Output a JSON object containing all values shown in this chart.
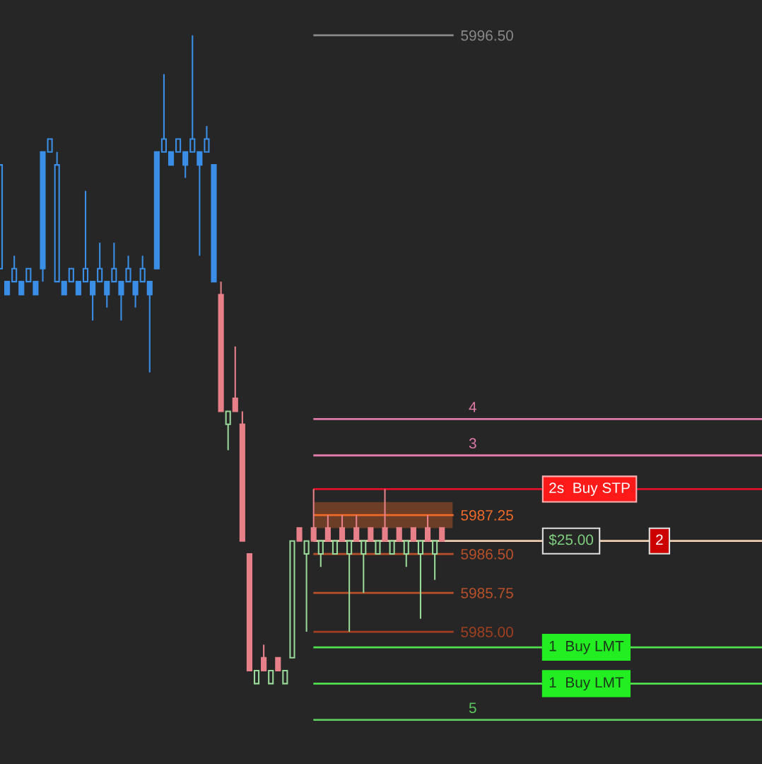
{
  "chart_data": {
    "type": "candlestick",
    "categories": [
      null,
      null,
      null,
      null,
      null,
      null,
      null,
      null,
      null,
      null,
      null,
      null,
      null,
      null,
      null,
      null,
      null,
      null,
      null,
      null,
      null,
      null,
      null,
      null,
      null,
      null,
      null,
      null,
      null,
      null,
      null,
      null,
      null,
      null,
      null,
      null,
      null,
      null,
      null,
      null,
      null,
      null,
      null,
      null,
      null,
      null,
      null,
      null,
      null,
      null,
      null,
      null,
      null,
      null,
      null,
      null,
      null,
      null,
      null,
      null,
      null,
      null,
      null
    ],
    "ohlc": [
      [
        5992.0,
        5994.0,
        5992.0,
        5994.0
      ],
      [
        5991.75,
        5991.75,
        5991.5,
        5991.5
      ],
      [
        5991.75,
        5992.25,
        5991.75,
        5992.0
      ],
      [
        5991.75,
        5991.75,
        5991.5,
        5991.5
      ],
      [
        5991.75,
        5992.0,
        5991.75,
        5992.0
      ],
      [
        5991.75,
        5991.75,
        5991.5,
        5991.5
      ],
      [
        5994.25,
        5994.25,
        5991.75,
        5992.0
      ],
      [
        5994.25,
        5994.5,
        5994.25,
        5994.5
      ],
      [
        5991.75,
        5994.25,
        5991.75,
        5994.0
      ],
      [
        5991.75,
        5991.75,
        5991.5,
        5991.5
      ],
      [
        5991.75,
        5992.0,
        5991.75,
        5992.0
      ],
      [
        5991.75,
        5991.75,
        5991.5,
        5991.5
      ],
      [
        5991.75,
        5993.5,
        5991.75,
        5992.0
      ],
      [
        5991.75,
        5991.75,
        5991.0,
        5991.5
      ],
      [
        5991.75,
        5992.5,
        5991.75,
        5992.0
      ],
      [
        5991.75,
        5991.75,
        5991.25,
        5991.5
      ],
      [
        5991.75,
        5992.5,
        5991.75,
        5992.0
      ],
      [
        5991.75,
        5991.75,
        5991.0,
        5991.5
      ],
      [
        5991.75,
        5992.25,
        5991.75,
        5992.0
      ],
      [
        5991.75,
        5991.75,
        5991.25,
        5991.5
      ],
      [
        5991.75,
        5992.25,
        5991.75,
        5992.0
      ],
      [
        5991.75,
        5991.75,
        5990.0,
        5991.5
      ],
      [
        5994.25,
        5994.25,
        5992.0,
        5992.0
      ],
      [
        5994.25,
        5995.75,
        5994.25,
        5994.5
      ],
      [
        5994.25,
        5994.25,
        5994.0,
        5994.0
      ],
      [
        5994.25,
        5994.5,
        5994.25,
        5994.5
      ],
      [
        5994.25,
        5994.25,
        5993.75,
        5994.0
      ],
      [
        5994.25,
        5996.5,
        5994.25,
        5994.5
      ],
      [
        5994.25,
        5994.25,
        5992.25,
        5994.0
      ],
      [
        5994.25,
        5994.75,
        5994.25,
        5994.5
      ],
      [
        5994.0,
        5994.0,
        5991.75,
        5991.75
      ],
      [
        5991.5,
        5991.75,
        5989.25,
        5989.25
      ],
      [
        5989.0,
        5989.25,
        5988.5,
        5989.25
      ],
      [
        5989.5,
        5990.5,
        5989.25,
        5989.25
      ],
      [
        5989.0,
        5989.25,
        5986.75,
        5986.75
      ],
      [
        5986.5,
        5986.5,
        5984.25,
        5984.25
      ],
      [
        5984.0,
        5984.25,
        5984.0,
        5984.25
      ],
      [
        5984.5,
        5984.75,
        5984.25,
        5984.25
      ],
      [
        5984.0,
        5984.25,
        5984.0,
        5984.25
      ],
      [
        5984.5,
        5984.5,
        5984.25,
        5984.25
      ],
      [
        5984.0,
        5984.25,
        5984.0,
        5984.25
      ],
      [
        5984.5,
        5986.75,
        5984.5,
        5986.75
      ],
      [
        5987.0,
        5987.0,
        5986.75,
        5986.75
      ],
      [
        5986.5,
        5986.75,
        5985.0,
        5986.75
      ],
      [
        5987.0,
        5987.75,
        5986.75,
        5986.75
      ],
      [
        5986.5,
        5986.75,
        5986.25,
        5986.75
      ],
      [
        5987.0,
        5987.25,
        5986.75,
        5986.75
      ],
      [
        5986.5,
        5986.75,
        5986.5,
        5986.75
      ],
      [
        5987.0,
        5987.25,
        5986.75,
        5986.75
      ],
      [
        5986.5,
        5986.75,
        5985.0,
        5986.75
      ],
      [
        5987.0,
        5987.25,
        5986.75,
        5986.75
      ],
      [
        5986.5,
        5986.75,
        5985.75,
        5986.75
      ],
      [
        5987.0,
        5987.0,
        5986.75,
        5986.75
      ],
      [
        5986.5,
        5986.75,
        5986.5,
        5986.75
      ],
      [
        5987.0,
        5987.75,
        5986.75,
        5986.75
      ],
      [
        5986.5,
        5986.75,
        5986.5,
        5986.75
      ],
      [
        5987.0,
        5987.0,
        5986.75,
        5986.75
      ],
      [
        5986.5,
        5986.75,
        5986.25,
        5986.75
      ],
      [
        5987.0,
        5987.0,
        5986.75,
        5986.75
      ],
      [
        5986.5,
        5986.75,
        5985.25,
        5986.75
      ],
      [
        5987.0,
        5987.25,
        5986.75,
        5986.75
      ],
      [
        5986.5,
        5986.75,
        5986.0,
        5986.75
      ],
      [
        5987.0,
        5987.0,
        5986.75,
        5986.75
      ]
    ],
    "colors": [
      "#3a8ee6",
      "#3a8ee6",
      "#3a8ee6",
      "#3a8ee6",
      "#3a8ee6",
      "#3a8ee6",
      "#3a8ee6",
      "#3a8ee6",
      "#3a8ee6",
      "#3a8ee6",
      "#3a8ee6",
      "#3a8ee6",
      "#3a8ee6",
      "#3a8ee6",
      "#3a8ee6",
      "#3a8ee6",
      "#3a8ee6",
      "#3a8ee6",
      "#3a8ee6",
      "#3a8ee6",
      "#3a8ee6",
      "#3a8ee6",
      "#3a8ee6",
      "#3a8ee6",
      "#3a8ee6",
      "#3a8ee6",
      "#3a8ee6",
      "#3a8ee6",
      "#3a8ee6",
      "#3a8ee6",
      "#3a8ee6",
      "#e8808a",
      "#98d898",
      "#e8808a",
      "#e8808a",
      "#e8808a",
      "#98d898",
      "#e8808a",
      "#98d898",
      "#e8808a",
      "#98d898",
      "#98d898",
      "#e8808a",
      "#98d898",
      "#e8808a",
      "#98d898",
      "#e8808a",
      "#98d898",
      "#e8808a",
      "#98d898",
      "#e8808a",
      "#98d898",
      "#e8808a",
      "#98d898",
      "#e8808a",
      "#98d898",
      "#e8808a",
      "#98d898",
      "#e8808a",
      "#98d898",
      "#e8808a",
      "#98d898",
      "#e8808a"
    ],
    "ylim": [
      5982.45,
      5997.18
    ],
    "yticks": [
      {
        "value": 5996.5,
        "label": "5996.50"
      },
      5987.25,
      {
        "value": 5986.5,
        "label": "5986.50"
      },
      5985.75,
      {
        "value": 5985.0,
        "label": "5985.00"
      }
    ],
    "tick_labels": "y",
    "ref_lines": [
      {
        "axis": "y",
        "value": 5996.5,
        "label": null,
        "color": "#8a8a8a"
      },
      {
        "axis": "y",
        "value": 5989.1,
        "label": null,
        "color": "#e07aa8"
      },
      {
        "axis": "y",
        "value": 5988.4,
        "label": null,
        "color": "#e07aa8"
      },
      {
        "axis": "y",
        "value": 5987.75,
        "label": null,
        "color": "#e0102a"
      },
      {
        "axis": "y",
        "value": 5987.25,
        "label": null,
        "color": "#f06a2a"
      },
      {
        "axis": "y",
        "value": 5986.75,
        "label": null,
        "color": "#f0d0b0"
      },
      {
        "axis": "y",
        "value": 5986.5,
        "label": null,
        "color": "#b8502a"
      },
      {
        "axis": "y",
        "value": 5985.75,
        "label": null,
        "color": "#b8502a"
      },
      {
        "axis": "y",
        "value": 5985.0,
        "label": null,
        "color": "#a04020"
      },
      {
        "axis": "y",
        "value": 5984.7,
        "label": null,
        "color": "#50e050"
      },
      {
        "axis": "y",
        "value": 5984.0,
        "label": null,
        "color": "#50e050"
      },
      {
        "axis": "y",
        "value": 5983.3,
        "label": null,
        "color": "#5cc85c"
      }
    ],
    "bands": [
      {
        "axis": "y",
        "from": 5987.0,
        "to": 5987.5,
        "color": "#f06a2a"
      }
    ],
    "annotations": [
      {
        "text": "4",
        "y": 5989.1
      },
      {
        "text": "3",
        "y": 5988.4
      },
      {
        "text": "5",
        "y": 5983.3
      },
      {
        "text": "2s  Buy STP",
        "y": 5987.75
      },
      {
        "text": "$25.00",
        "y": 5986.75
      },
      {
        "text": "2",
        "y": 5986.75
      },
      {
        "text": "1  Buy LMT",
        "y": 5984.7
      },
      {
        "text": "1  Buy LMT",
        "y": 5984.0
      }
    ]
  }
}
